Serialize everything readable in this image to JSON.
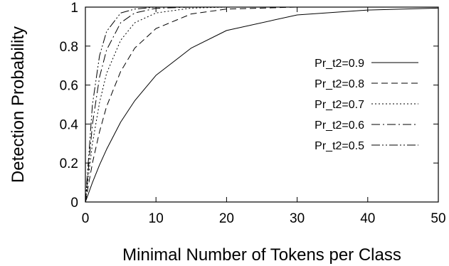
{
  "chart_data": {
    "type": "line",
    "title": "",
    "xlabel": "Minimal Number of Tokens per Class",
    "ylabel": "Detection Probability",
    "xlim": [
      0,
      50
    ],
    "ylim": [
      0,
      1
    ],
    "x_ticks": [
      0,
      10,
      20,
      30,
      40,
      50
    ],
    "y_ticks": [
      0,
      0.2,
      0.4,
      0.6,
      0.8,
      1
    ],
    "x_tick_labels": [
      "0",
      "10",
      "20",
      "30",
      "40",
      "50"
    ],
    "y_tick_labels": [
      "0",
      "0.2",
      "0.4",
      "0.6",
      "0.8",
      "1"
    ],
    "grid": false,
    "legend_position": "right",
    "series": [
      {
        "name": "Pr_t2=0.9",
        "dash": "solid",
        "x": [
          0,
          1,
          2,
          3,
          5,
          7,
          10,
          15,
          20,
          30,
          40,
          50
        ],
        "y": [
          0,
          0.1,
          0.19,
          0.27,
          0.41,
          0.52,
          0.65,
          0.79,
          0.88,
          0.96,
          0.985,
          0.995
        ]
      },
      {
        "name": "Pr_t2=0.8",
        "dash": "dashed",
        "x": [
          0,
          1,
          2,
          3,
          5,
          7,
          10,
          15,
          20,
          30,
          40,
          50
        ],
        "y": [
          0,
          0.2,
          0.36,
          0.49,
          0.67,
          0.79,
          0.89,
          0.965,
          0.99,
          1,
          1,
          1
        ]
      },
      {
        "name": "Pr_t2=0.7",
        "dash": "dotted",
        "x": [
          0,
          1,
          2,
          3,
          5,
          7,
          10,
          15,
          20,
          30,
          40,
          50
        ],
        "y": [
          0,
          0.3,
          0.51,
          0.66,
          0.83,
          0.92,
          0.97,
          0.995,
          1,
          1,
          1,
          1
        ]
      },
      {
        "name": "Pr_t2=0.6",
        "dash": "dashdot",
        "x": [
          0,
          1,
          2,
          3,
          5,
          7,
          10,
          15,
          20,
          30,
          40,
          50
        ],
        "y": [
          0,
          0.4,
          0.64,
          0.78,
          0.92,
          0.97,
          0.994,
          1,
          1,
          1,
          1,
          1
        ]
      },
      {
        "name": "Pr_t2=0.5",
        "dash": "dashdotdot",
        "x": [
          0,
          1,
          2,
          3,
          5,
          7,
          10,
          15,
          20,
          30,
          40,
          50
        ],
        "y": [
          0,
          0.5,
          0.75,
          0.875,
          0.97,
          0.99,
          1,
          1,
          1,
          1,
          1,
          1
        ]
      }
    ]
  }
}
